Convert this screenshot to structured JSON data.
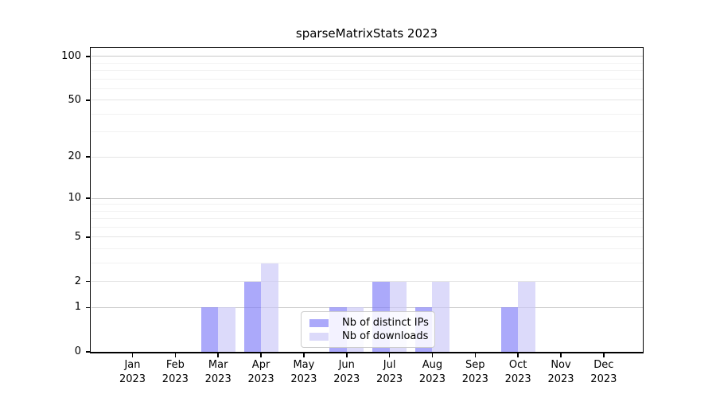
{
  "page": {
    "background": "#ffffff"
  },
  "chart_data": {
    "type": "bar",
    "title": "sparseMatrixStats 2023",
    "categories": [
      "Jan 2023",
      "Feb 2023",
      "Mar 2023",
      "Apr 2023",
      "May 2023",
      "Jun 2023",
      "Jul 2023",
      "Aug 2023",
      "Sep 2023",
      "Oct 2023",
      "Nov 2023",
      "Dec 2023"
    ],
    "series": [
      {
        "name": "Nb of distinct IPs",
        "color": "#7e7bf7",
        "values": [
          0,
          0,
          1,
          2,
          0,
          1,
          2,
          1,
          0,
          1,
          0,
          0
        ]
      },
      {
        "name": "Nb of downloads",
        "color": "#c9c6f7",
        "values": [
          0,
          0,
          1,
          3,
          0,
          1,
          2,
          2,
          0,
          2,
          0,
          0
        ]
      }
    ],
    "bar_alpha": 0.65,
    "yscale": "log1p",
    "ylim": [
      0,
      114
    ],
    "y_ticks": [
      0,
      1,
      2,
      5,
      10,
      20,
      50,
      100
    ],
    "y_minor_ticks": [
      3,
      4,
      6,
      7,
      8,
      9,
      30,
      40,
      60,
      70,
      80,
      90
    ],
    "xlabel": "",
    "ylabel": "",
    "grid": true,
    "legend_position": "lower center",
    "grid_colors": {
      "decade": "#c8c8c8",
      "major": "#e4e4e4",
      "minor": "#f2f2f2"
    },
    "axis_color": "#000000",
    "text_color": "#000000"
  }
}
